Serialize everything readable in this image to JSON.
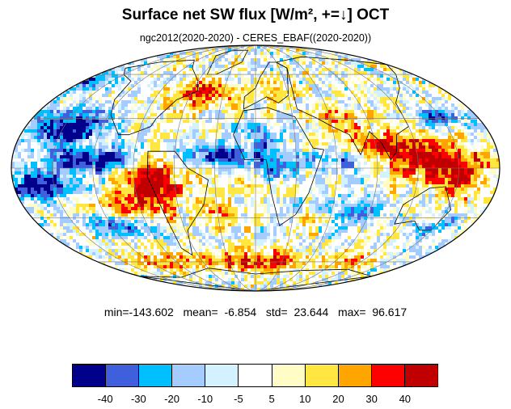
{
  "title": "Surface net SW flux [W/m², +=↓]  OCT",
  "subtitle": "ngc2012(2020-2020) - CERES_EBAF((2020-2020))",
  "stats": "min=-143.602   mean=  -6.854   std=  23.644   max=  96.617",
  "projection": "mollweide",
  "colorbar": {
    "colors": [
      "#00008b",
      "#3f5fdc",
      "#00bfff",
      "#a4ccff",
      "#d4f1ff",
      "#ffffff",
      "#fffcc6",
      "#ffe640",
      "#ffa500",
      "#ff0000",
      "#c00000"
    ],
    "labels": [
      "-40",
      "-30",
      "-20",
      "-10",
      "-5",
      "5",
      "10",
      "20",
      "30",
      "40"
    ]
  }
}
